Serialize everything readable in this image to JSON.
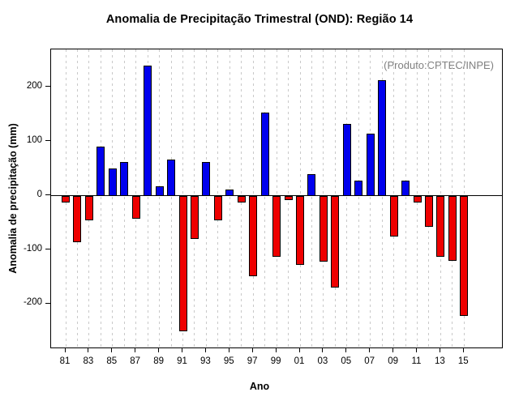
{
  "chart_data": {
    "type": "bar",
    "title": "Anomalia de Precipitação Trimestral (OND): Região 14",
    "annotation": "(Produto:CPTEC/INPE)",
    "xlabel": "Ano",
    "ylabel": "Anomalia de precipitação (mm)",
    "ylim": [
      -280,
      270
    ],
    "yticks": [
      -200,
      -100,
      0,
      100,
      200
    ],
    "xtick_labels": [
      "81",
      "83",
      "85",
      "87",
      "89",
      "91",
      "93",
      "95",
      "97",
      "99",
      "01",
      "03",
      "05",
      "07",
      "09",
      "11",
      "13",
      "15"
    ],
    "years": [
      "81",
      "82",
      "83",
      "84",
      "85",
      "86",
      "87",
      "88",
      "89",
      "90",
      "91",
      "92",
      "93",
      "94",
      "95",
      "96",
      "97",
      "98",
      "99",
      "00",
      "01",
      "02",
      "03",
      "04",
      "05",
      "06",
      "07",
      "08",
      "09",
      "10",
      "11",
      "12",
      "13",
      "14",
      "15"
    ],
    "values": [
      -12,
      -85,
      -45,
      90,
      50,
      62,
      -42,
      240,
      18,
      67,
      -250,
      -80,
      62,
      -45,
      12,
      -12,
      -148,
      153,
      -113,
      -8,
      -128,
      40,
      -122,
      -170,
      133,
      28,
      115,
      213,
      -75,
      28,
      -12,
      -57,
      -113,
      -120,
      -222
    ],
    "positive_color": "#0000EE",
    "negative_color": "#EE0000",
    "bar_border_color": "#000000",
    "grid": "dashed-vertical",
    "legend": "none"
  }
}
